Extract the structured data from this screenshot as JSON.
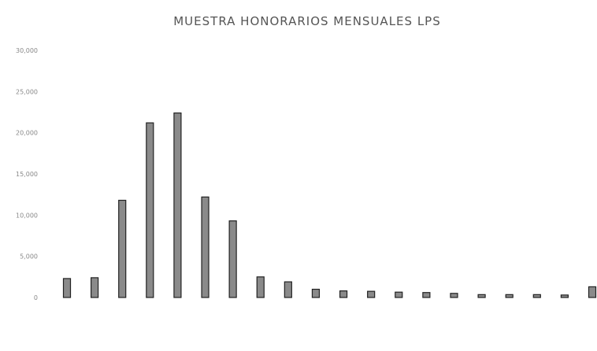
{
  "chart_data": {
    "type": "bar",
    "title": "MUESTRA HONORARIOS MENSUALES LPS",
    "xlabel": "",
    "ylabel": "",
    "y_tick_labels": [
      "0",
      "5,000",
      "10,000",
      "15,000",
      "20,000",
      "25,000",
      "30,000"
    ],
    "ylim": [
      0,
      30000
    ],
    "grid": false,
    "legend": "none",
    "categories": [
      "",
      "",
      "",
      "",
      "",
      "",
      "",
      "",
      "",
      "",
      "",
      "",
      "",
      "",
      "",
      "",
      "",
      "",
      "",
      ""
    ],
    "values": [
      2300,
      2400,
      11800,
      21200,
      22400,
      12200,
      9300,
      2500,
      1900,
      1000,
      800,
      750,
      650,
      600,
      500,
      350,
      350,
      350,
      300,
      1300
    ],
    "colors": {
      "bar_fill": "#8a8a8a",
      "bar_stroke": "#222222",
      "text": "#777777"
    }
  }
}
